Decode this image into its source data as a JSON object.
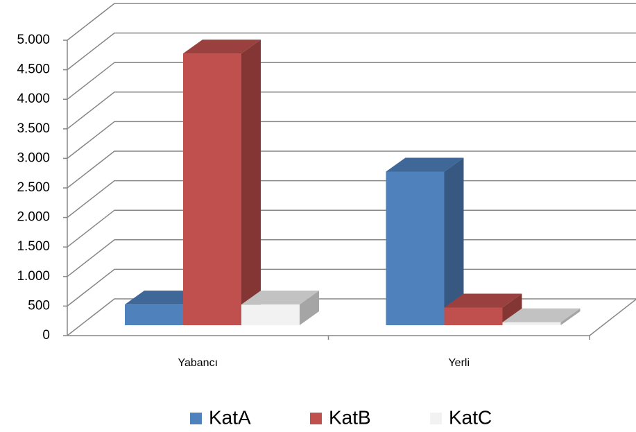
{
  "chart_data": {
    "type": "bar3d",
    "categories": [
      "Yabancı",
      "Yerli"
    ],
    "series": [
      {
        "name": "KatA",
        "color": "#4f81bd",
        "values": [
          350,
          2600
        ]
      },
      {
        "name": "KatB",
        "color": "#c0504d",
        "values": [
          4600,
          300
        ]
      },
      {
        "name": "KatC",
        "color": "#f2f2f2",
        "values": [
          350,
          50
        ]
      }
    ],
    "ylim": [
      0,
      5000
    ],
    "yticks": [
      0,
      500,
      {
        "value": 1000,
        "label": "1.000"
      },
      {
        "value": 1500,
        "label": "1.500"
      },
      {
        "value": 2000,
        "label": "2.000"
      },
      {
        "value": 2500,
        "label": "2.500"
      },
      {
        "value": 3000,
        "label": "3.000"
      },
      {
        "value": 3500,
        "label": "3.500"
      },
      {
        "value": 4000,
        "label": "4.000"
      },
      {
        "value": 4500,
        "label": "4.500"
      },
      {
        "value": 5000,
        "label": "5.000"
      }
    ],
    "grid": true,
    "legend": "bottom"
  }
}
